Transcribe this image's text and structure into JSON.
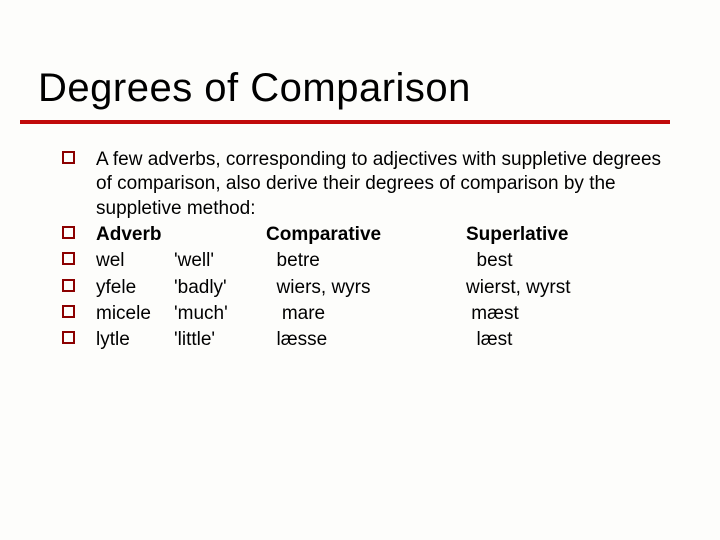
{
  "title": {
    "text": "Degrees of Comparison",
    "fontsize": 40,
    "underline_color": "#c10a0a"
  },
  "content": {
    "intro": "A few adverbs, corresponding to adjectives with suppletive degrees of comparison, also derive their degrees of comparison by the suppletive method:",
    "headers": [
      "Adverb",
      "Comparative",
      "Superlative"
    ],
    "rows": [
      {
        "adverb": "wel",
        "gloss": "'well'",
        "comparative": "  betre",
        "superlative": "  best"
      },
      {
        "adverb": "yfele",
        "gloss": "'badly'",
        "comparative": "  wiers, wyrs",
        "superlative": "wierst, wyrst"
      },
      {
        "adverb": "micele",
        "gloss": "'much'",
        "comparative": "   mare",
        "superlative": " mæst"
      },
      {
        "adverb": "lytle",
        "gloss": "'little'",
        "comparative": "  læsse",
        "superlative": "  læst"
      }
    ],
    "body_fontsize": 19,
    "bullet_border_color": "#8b0000",
    "text_color": "#000000",
    "background_color": "#fdfdfb"
  }
}
